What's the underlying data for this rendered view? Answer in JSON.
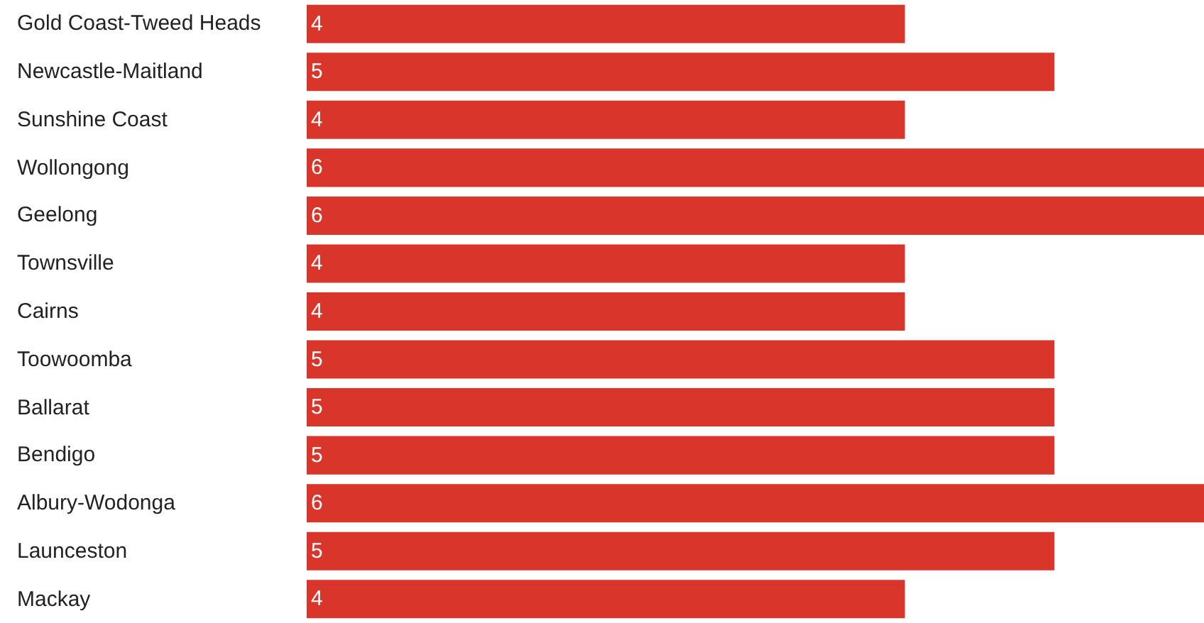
{
  "chart_data": {
    "type": "bar",
    "orientation": "horizontal",
    "categories": [
      "Gold Coast-Tweed Heads",
      "Newcastle-Maitland",
      "Sunshine Coast",
      "Wollongong",
      "Geelong",
      "Townsville",
      "Cairns",
      "Toowoomba",
      "Ballarat",
      "Bendigo",
      "Albury-Wodonga",
      "Launceston",
      "Mackay"
    ],
    "values": [
      4,
      5,
      4,
      6,
      6,
      4,
      4,
      5,
      5,
      5,
      6,
      5,
      4
    ],
    "color": "#d9352a",
    "data_labels": true,
    "tick_labels": "y"
  }
}
